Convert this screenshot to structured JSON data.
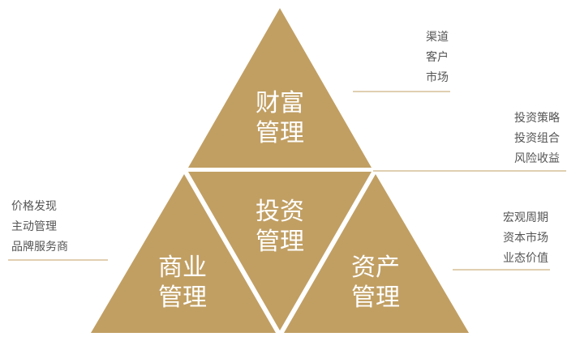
{
  "colors": {
    "triangle": "#c19f63",
    "label": "#ffffff",
    "note_text": "#555555",
    "rule": "#c19f63"
  },
  "triangles": {
    "top": {
      "line1": "财富",
      "line2": "管理"
    },
    "center": {
      "line1": "投资",
      "line2": "管理"
    },
    "left": {
      "line1": "商业",
      "line2": "管理"
    },
    "right": {
      "line1": "资产",
      "line2": "管理"
    }
  },
  "notes": {
    "top": [
      "渠道",
      "客户",
      "市场"
    ],
    "center": [
      "投资策略",
      "投资组合",
      "风险收益"
    ],
    "left": [
      "价格发现",
      "主动管理",
      "品牌服务商"
    ],
    "right": [
      "宏观周期",
      "资本市场",
      "业态价值"
    ]
  }
}
